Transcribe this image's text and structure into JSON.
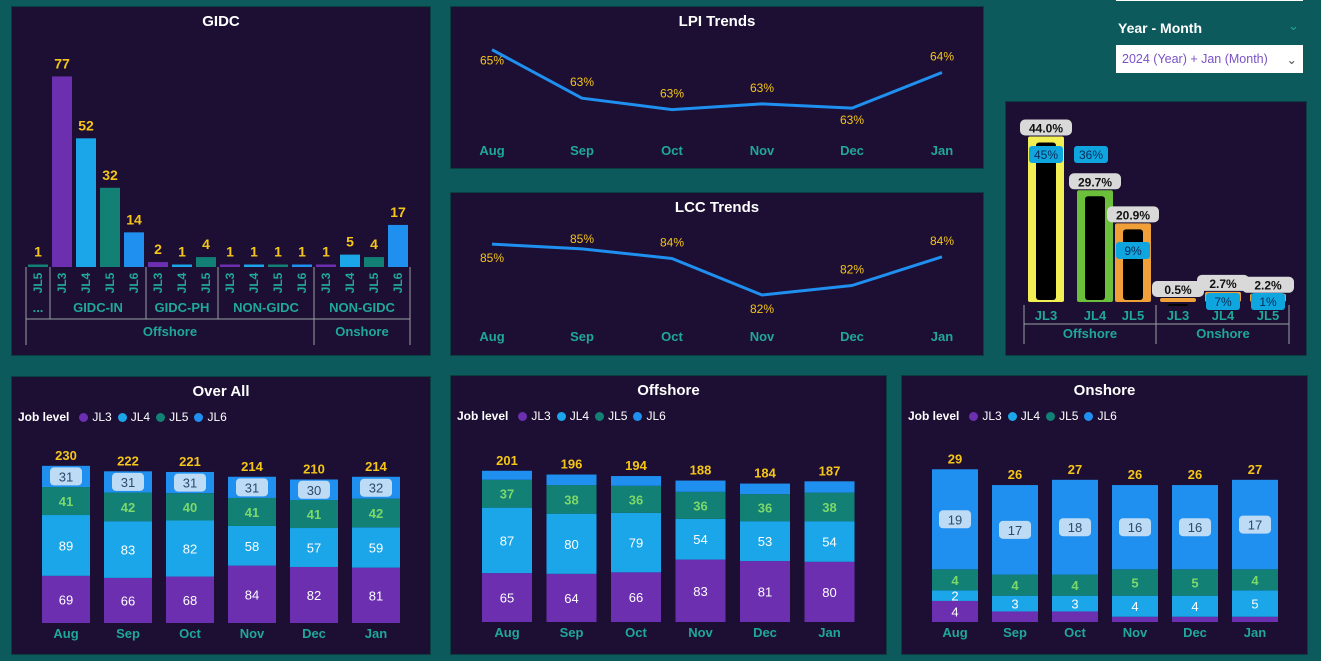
{
  "slicer": {
    "label": "Year - Month",
    "value": "2024 (Year) + Jan (Month)",
    "chevron_icon": "chevron-down-icon"
  },
  "colors": {
    "JL3": "#6b2fb0",
    "JL4": "#1aa6e8",
    "JL5": "#128075",
    "JL6": "#1f8ff0",
    "value_label": "#f5c518",
    "axis_label": "#1fa89a",
    "line": "#1f8ff0"
  },
  "legend": {
    "title": "Job level",
    "items": [
      "JL3",
      "JL4",
      "JL5",
      "JL6"
    ]
  },
  "chart_data": [
    {
      "id": "gidc",
      "type": "bar",
      "title": "GIDC",
      "bars": [
        {
          "jl": "JL5",
          "group": "...",
          "region": "Offshore",
          "value": 1
        },
        {
          "jl": "JL3",
          "group": "GIDC-IN",
          "region": "Offshore",
          "value": 77
        },
        {
          "jl": "JL4",
          "group": "GIDC-IN",
          "region": "Offshore",
          "value": 52
        },
        {
          "jl": "JL5",
          "group": "GIDC-IN",
          "region": "Offshore",
          "value": 32
        },
        {
          "jl": "JL6",
          "group": "GIDC-IN",
          "region": "Offshore",
          "value": 14
        },
        {
          "jl": "JL3",
          "group": "GIDC-PH",
          "region": "Offshore",
          "value": 2
        },
        {
          "jl": "JL4",
          "group": "GIDC-PH",
          "region": "Offshore",
          "value": 1
        },
        {
          "jl": "JL5",
          "group": "GIDC-PH",
          "region": "Offshore",
          "value": 4
        },
        {
          "jl": "JL3",
          "group": "NON-GIDC",
          "region": "Offshore",
          "value": 1
        },
        {
          "jl": "JL4",
          "group": "NON-GIDC",
          "region": "Offshore",
          "value": 1
        },
        {
          "jl": "JL5",
          "group": "NON-GIDC",
          "region": "Offshore",
          "value": 1
        },
        {
          "jl": "JL6",
          "group": "NON-GIDC",
          "region": "Offshore",
          "value": 1
        },
        {
          "jl": "JL3",
          "group": "NON-GIDC",
          "region": "Onshore",
          "value": 1
        },
        {
          "jl": "JL4",
          "group": "NON-GIDC",
          "region": "Onshore",
          "value": 5
        },
        {
          "jl": "JL5",
          "group": "NON-GIDC",
          "region": "Onshore",
          "value": 4
        },
        {
          "jl": "JL6",
          "group": "NON-GIDC",
          "region": "Onshore",
          "value": 17
        }
      ],
      "groups": [
        "...",
        "GIDC-IN",
        "GIDC-PH",
        "NON-GIDC",
        "NON-GIDC"
      ],
      "regions": [
        "Offshore",
        "Onshore"
      ],
      "ylim": [
        0,
        80
      ]
    },
    {
      "id": "lpi",
      "type": "line",
      "title": "LPI Trends",
      "categories": [
        "Aug",
        "Sep",
        "Oct",
        "Nov",
        "Dec",
        "Jan"
      ],
      "values": [
        65,
        63,
        63,
        63,
        63,
        64
      ],
      "labels": [
        "65%",
        "63%",
        "63%",
        "63%",
        "63%",
        "64%"
      ],
      "plot_values": [
        65.0,
        63.3,
        62.9,
        63.1,
        62.95,
        64.2
      ],
      "ylim": [
        62.5,
        65.2
      ]
    },
    {
      "id": "lcc",
      "type": "line",
      "title": "LCC Trends",
      "categories": [
        "Aug",
        "Sep",
        "Oct",
        "Nov",
        "Dec",
        "Jan"
      ],
      "values": [
        85,
        85,
        84,
        82,
        82,
        84
      ],
      "labels": [
        "85%",
        "85%",
        "84%",
        "82%",
        "82%",
        "84%"
      ],
      "plot_values": [
        84.9,
        84.6,
        84.0,
        81.7,
        82.3,
        84.1
      ],
      "ylim": [
        81.2,
        85.6
      ]
    },
    {
      "id": "capsule",
      "type": "bar",
      "title": "",
      "bars": [
        {
          "jl": "JL3",
          "region": "Offshore",
          "outer": 44.0,
          "outer_label": "44.0%",
          "inner": 45,
          "inner_label": "45%",
          "color": "#f2ef55"
        },
        {
          "jl": "JL4",
          "region": "Offshore",
          "outer": 29.7,
          "outer_label": "29.7%",
          "inner": 36,
          "inner_label": "36%",
          "color": "#6bbf3a"
        },
        {
          "jl": "JL5",
          "region": "Offshore",
          "outer": 20.9,
          "outer_label": "20.9%",
          "inner": 9,
          "inner_label": "9%",
          "color": "#f0a038"
        },
        {
          "jl": "JL3",
          "region": "Onshore",
          "outer": 0.5,
          "outer_label": "0.5%",
          "inner": 0,
          "inner_label": "",
          "color": "#f0a038"
        },
        {
          "jl": "JL4",
          "region": "Onshore",
          "outer": 2.7,
          "outer_label": "2.7%",
          "inner": 7,
          "inner_label": "7%",
          "color": "#f0a038"
        },
        {
          "jl": "JL5",
          "region": "Onshore",
          "outer": 2.2,
          "outer_label": "2.2%",
          "inner": 1,
          "inner_label": "1%",
          "color": "#f0a038"
        }
      ],
      "regions": [
        "Offshore",
        "Onshore"
      ],
      "ylim": [
        0,
        46
      ]
    },
    {
      "id": "overall",
      "type": "bar",
      "stacked": true,
      "title": "Over All",
      "categories": [
        "Aug",
        "Sep",
        "Oct",
        "Nov",
        "Dec",
        "Jan"
      ],
      "totals": [
        230,
        222,
        221,
        214,
        210,
        214
      ],
      "series": [
        {
          "name": "JL3",
          "values": [
            69,
            66,
            68,
            84,
            82,
            81
          ]
        },
        {
          "name": "JL4",
          "values": [
            89,
            83,
            82,
            58,
            57,
            59
          ]
        },
        {
          "name": "JL5",
          "values": [
            41,
            42,
            40,
            41,
            41,
            42
          ]
        },
        {
          "name": "JL6",
          "values": [
            31,
            31,
            31,
            31,
            30,
            32
          ]
        }
      ],
      "ylim": [
        0,
        240
      ]
    },
    {
      "id": "offshore",
      "type": "bar",
      "stacked": true,
      "title": "Offshore",
      "categories": [
        "Aug",
        "Sep",
        "Oct",
        "Nov",
        "Dec",
        "Jan"
      ],
      "totals": [
        201,
        196,
        194,
        188,
        184,
        187
      ],
      "series": [
        {
          "name": "JL3",
          "values": [
            65,
            64,
            66,
            83,
            81,
            80
          ]
        },
        {
          "name": "JL4",
          "values": [
            87,
            80,
            79,
            54,
            53,
            54
          ]
        },
        {
          "name": "JL5",
          "values": [
            37,
            38,
            36,
            36,
            36,
            38
          ]
        },
        {
          "name": "JL6",
          "values": [
            12,
            14,
            13,
            15,
            14,
            15
          ]
        }
      ],
      "hidden_labels": [
        "JL6"
      ],
      "ylim": [
        0,
        210
      ]
    },
    {
      "id": "onshore",
      "type": "bar",
      "stacked": true,
      "title": "Onshore",
      "categories": [
        "Aug",
        "Sep",
        "Oct",
        "Nov",
        "Dec",
        "Jan"
      ],
      "totals": [
        29,
        26,
        27,
        26,
        26,
        27
      ],
      "series": [
        {
          "name": "JL3",
          "values": [
            4,
            2,
            2,
            1,
            1,
            1
          ]
        },
        {
          "name": "JL4",
          "values": [
            2,
            3,
            3,
            4,
            4,
            5
          ]
        },
        {
          "name": "JL5",
          "values": [
            4,
            4,
            4,
            5,
            5,
            4
          ]
        },
        {
          "name": "JL6",
          "values": [
            19,
            17,
            18,
            16,
            16,
            17
          ]
        }
      ],
      "shown_labels": {
        "JL3": [
          4,
          null,
          null,
          null,
          null,
          null
        ]
      },
      "ylim": [
        0,
        30
      ]
    }
  ]
}
